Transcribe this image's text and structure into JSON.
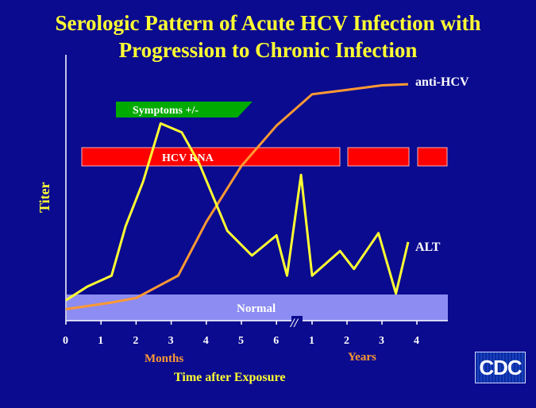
{
  "slide": {
    "title_line1": "Serologic Pattern of Acute HCV Infection with",
    "title_line2": "Progression to Chronic Infection",
    "logo_text": "CDC"
  },
  "colors": {
    "background": "#0b0b8f",
    "title": "#ffff33",
    "alt_line": "#ffff33",
    "anti_hcv_line": "#ff9933",
    "hcv_rna_bar": "#ff0000",
    "symptoms_bar": "#00aa00",
    "normal_band": "#8c8cf2"
  },
  "chart_data": {
    "type": "line",
    "title": "Serologic Pattern of Acute HCV Infection with Progression to Chronic Infection",
    "xlabel": "Time after Exposure",
    "ylabel": "Titer",
    "x_segments": [
      {
        "unit_label": "Months",
        "ticks": [
          "0",
          "1",
          "2",
          "3",
          "4",
          "5",
          "6"
        ]
      },
      {
        "unit_label": "Years",
        "ticks": [
          "1",
          "2",
          "3",
          "4"
        ]
      }
    ],
    "axis_break_marker": "//",
    "y_ticks": [],
    "series": [
      {
        "name": "anti-HCV",
        "color": "#ff9933",
        "points": [
          {
            "t": "0 months",
            "v": 3
          },
          {
            "t": "1.3 months",
            "v": 6
          },
          {
            "t": "2 months",
            "v": 8
          },
          {
            "t": "3.2 months",
            "v": 18
          },
          {
            "t": "4 months",
            "v": 42
          },
          {
            "t": "5 months",
            "v": 67
          },
          {
            "t": "6 months",
            "v": 85
          },
          {
            "t": "1 year",
            "v": 99
          },
          {
            "t": "2 years",
            "v": 101
          },
          {
            "t": "3 years",
            "v": 103
          },
          {
            "t": "3.75 years",
            "v": 103.5
          }
        ]
      },
      {
        "name": "ALT",
        "color": "#ffff33",
        "points": [
          {
            "t": "0 months",
            "v": 7
          },
          {
            "t": "0.6 months",
            "v": 13
          },
          {
            "t": "1.3 months",
            "v": 18
          },
          {
            "t": "1.7 months",
            "v": 40
          },
          {
            "t": "2.2 months",
            "v": 60
          },
          {
            "t": "2.7 months",
            "v": 86
          },
          {
            "t": "3.3 months",
            "v": 82
          },
          {
            "t": "3.8 months",
            "v": 68
          },
          {
            "t": "4.6 months",
            "v": 38
          },
          {
            "t": "5.3 months",
            "v": 27
          },
          {
            "t": "6 months",
            "v": 36
          },
          {
            "t": "6.3 months",
            "v": 18
          },
          {
            "t": "6.7 months",
            "v": 63
          },
          {
            "t": "1 year",
            "v": 18
          },
          {
            "t": "1.8 years",
            "v": 29
          },
          {
            "t": "2.2 years",
            "v": 21
          },
          {
            "t": "2.9 years",
            "v": 37
          },
          {
            "t": "3.4 years",
            "v": 10
          },
          {
            "t": "3.75 years",
            "v": 33
          }
        ]
      }
    ],
    "bands": [
      {
        "name": "HCV RNA",
        "color": "#ff0000",
        "segments": [
          [
            "0.5 months",
            "1.8 years"
          ],
          [
            "2.0 years",
            "3.8 years"
          ],
          [
            "4.0 years",
            "4.8 years"
          ]
        ]
      },
      {
        "name": "Symptoms +/-",
        "color": "#00aa00",
        "range": [
          "1.4 months",
          "5.3 months"
        ]
      },
      {
        "name": "Normal",
        "color": "#8c8cf2",
        "range_y": "ALT normal range"
      }
    ],
    "labels": {
      "anti_hcv": "anti-HCV",
      "alt": "ALT",
      "hcv_rna": "HCV RNA",
      "symptoms": "Symptoms +/-",
      "normal": "Normal",
      "months": "Months",
      "years": "Years",
      "xlabel": "Time after Exposure",
      "ylabel": "Titer"
    },
    "grid": false,
    "legend": "inline labels at line ends"
  }
}
